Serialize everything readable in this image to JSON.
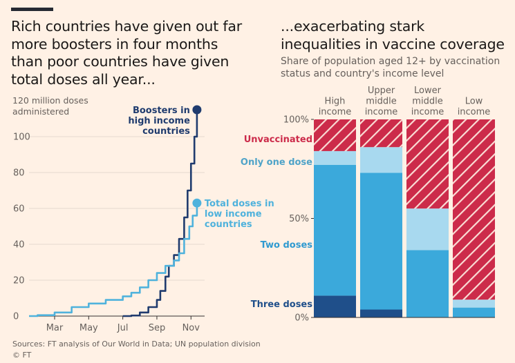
{
  "left": {
    "title": "Rich countries have given out far more boosters in four months than poor countries have given total doses all year...",
    "unit_label_line1": "120 million doses",
    "unit_label_line2": "administered",
    "annotation_boosters": [
      "Boosters in",
      "high income",
      "countries"
    ],
    "annotation_total": [
      "Total doses in",
      "low income",
      "countries"
    ]
  },
  "right": {
    "title": "...exacerbating stark inequalities in vaccine coverage",
    "subtitle": "Share of population aged 12+ by vaccination status and country's income level"
  },
  "footer": {
    "sources": "Sources: FT analysis of Our World in Data; UN population division",
    "copyright": "© FT"
  },
  "colors": {
    "background": "#fff1e5",
    "dark_blue": "#204a87",
    "booster_line": "#1f3b6e",
    "light_blue": "#4fb2dc",
    "two_doses": "#3ba9db",
    "one_dose": "#a8d9ef",
    "three_doses": "#1f4f8a",
    "unvaccinated": "#cc2b4a",
    "axis_text": "#66605c"
  },
  "chart_data": [
    {
      "type": "line",
      "title": "",
      "xlabel": "",
      "ylabel": "",
      "ylim": [
        0,
        120
      ],
      "x_ticks": [
        "Mar",
        "May",
        "Jul",
        "Sep",
        "Nov"
      ],
      "y_ticks": [
        "0",
        "20",
        "40",
        "60",
        "80",
        "100"
      ],
      "y_tick_values": [
        0,
        20,
        40,
        60,
        80,
        100
      ],
      "x_domain_months": [
        1.5,
        11.8
      ],
      "grid": true,
      "series": [
        {
          "name": "Boosters in high income countries",
          "color": "#1f3b6e",
          "points": [
            [
              7.0,
              0
            ],
            [
              7.5,
              0.3
            ],
            [
              8.0,
              2
            ],
            [
              8.5,
              5
            ],
            [
              9.0,
              9
            ],
            [
              9.2,
              14
            ],
            [
              9.5,
              22
            ],
            [
              9.7,
              28
            ],
            [
              10.0,
              34
            ],
            [
              10.3,
              43
            ],
            [
              10.6,
              55
            ],
            [
              10.8,
              70
            ],
            [
              11.0,
              85
            ],
            [
              11.2,
              100
            ],
            [
              11.35,
              115
            ]
          ]
        },
        {
          "name": "Total doses in low income countries",
          "color": "#4fb2dc",
          "points": [
            [
              1.5,
              0
            ],
            [
              2.0,
              0.5
            ],
            [
              3.0,
              2
            ],
            [
              4.0,
              5
            ],
            [
              5.0,
              7
            ],
            [
              6.0,
              9
            ],
            [
              7.0,
              11
            ],
            [
              7.5,
              13
            ],
            [
              8.0,
              16
            ],
            [
              8.5,
              20
            ],
            [
              9.0,
              24
            ],
            [
              9.5,
              28
            ],
            [
              10.0,
              31
            ],
            [
              10.3,
              35
            ],
            [
              10.6,
              43
            ],
            [
              10.9,
              50
            ],
            [
              11.1,
              56
            ],
            [
              11.35,
              63
            ]
          ]
        }
      ]
    },
    {
      "type": "bar",
      "stacked": true,
      "title": "",
      "categories": [
        "High income",
        "Upper middle income",
        "Lower middle income",
        "Low income"
      ],
      "y_ticks": [
        "0%",
        "50%",
        "100%"
      ],
      "ylim": [
        0,
        100
      ],
      "series": [
        {
          "name": "Three doses",
          "color": "#1f4f8a",
          "values": [
            11,
            4,
            0,
            0
          ]
        },
        {
          "name": "Two doses",
          "color": "#3ba9db",
          "values": [
            66,
            69,
            34,
            5
          ]
        },
        {
          "name": "Only one dose",
          "color": "#a8d9ef",
          "values": [
            7,
            13,
            21,
            4
          ]
        },
        {
          "name": "Unvaccinated",
          "color": "#cc2b4a",
          "values": [
            16,
            14,
            45,
            91
          ]
        }
      ]
    }
  ]
}
